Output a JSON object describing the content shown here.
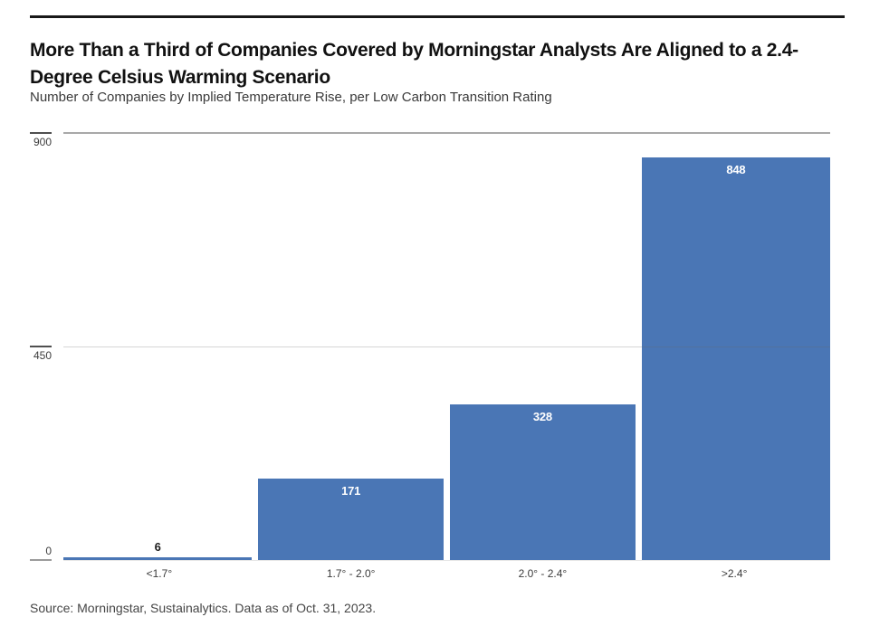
{
  "header": {
    "title_line1": "More Than a Third of Companies Covered by Morningstar Analysts Are Aligned to a 2.4-",
    "title_line2": "Degree Celsius Warming Scenario",
    "subtitle": "Number of Companies by Implied Temperature Rise, per Low Carbon Transition Rating"
  },
  "chart_data": {
    "type": "bar",
    "title": "More Than a Third of Companies Covered by Morningstar Analysts Are Aligned to a 2.4-Degree Celsius Warming Scenario",
    "subtitle": "Number of Companies by Implied Temperature Rise, per Low Carbon Transition Rating",
    "categories": [
      "<1.7°",
      "1.7° - 2.0°",
      "2.0° - 2.4°",
      ">2.4°"
    ],
    "values": [
      6,
      171,
      328,
      848
    ],
    "xlabel": "",
    "ylabel": "",
    "ylim": [
      0,
      900
    ],
    "yticks": [
      0,
      450,
      900
    ],
    "grid": "horizontal",
    "legend": "none",
    "bar_color": "#4a76b5"
  },
  "footer": {
    "source": "Source: Morningstar, Sustainalytics. Data as of Oct. 31, 2023."
  }
}
